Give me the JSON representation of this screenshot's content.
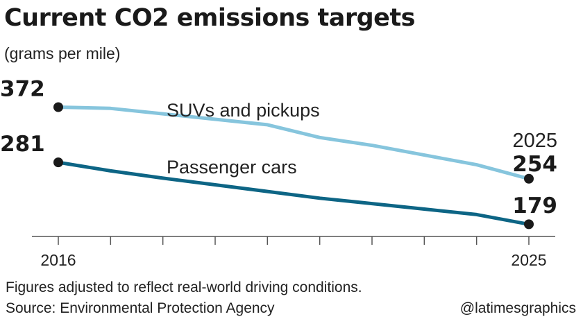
{
  "title": "Current CO2 emissions targets",
  "subtitle": "(grams per mile)",
  "note": "Figures adjusted to reflect real-world driving conditions.",
  "source": "Source: Environmental Protection Agency",
  "credit": "@latimesgraphics",
  "chart_data": {
    "type": "line",
    "x": [
      2016,
      2017,
      2018,
      2019,
      2020,
      2021,
      2022,
      2023,
      2024,
      2025
    ],
    "xlim": [
      2016,
      2025
    ],
    "ylim": [
      160,
      400
    ],
    "x_tick_labels": [
      "2016",
      "2025"
    ],
    "end_year_label": "2025",
    "grid": false,
    "series": [
      {
        "name": "SUVs and pickups",
        "color": "#86c5dd",
        "values": [
          372,
          370,
          361,
          352,
          343,
          322,
          309,
          293,
          277,
          254
        ],
        "start_label": "372",
        "end_label": "254"
      },
      {
        "name": "Passenger cars",
        "color": "#0d6585",
        "values": [
          281,
          267,
          255,
          244,
          233,
          222,
          213,
          204,
          195,
          179
        ],
        "start_label": "281",
        "end_label": "179"
      }
    ]
  }
}
